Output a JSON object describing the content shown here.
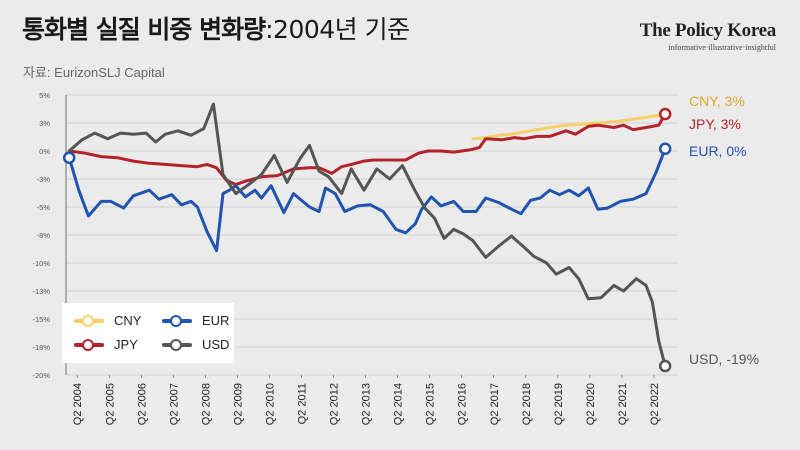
{
  "header": {
    "title": "통화별 실질 비중 변화량",
    "title_suffix": ":2004년 기준",
    "source": "자료: EurizonSLJ Capital",
    "brand_name": "The Policy Korea",
    "brand_tagline": "informative·illustrative·insightful"
  },
  "colors": {
    "CNY": "#f7cf68",
    "JPY": "#b5222a",
    "EUR": "#1f54b0",
    "USD": "#555555",
    "end_CNY": "#d9a82e"
  },
  "chart_data": {
    "type": "line",
    "ylim": [
      -20,
      5
    ],
    "yticks": [
      "5%",
      "3%",
      "0%",
      "-3%",
      "-5%",
      "-8%",
      "-10%",
      "-13%",
      "-15%",
      "-18%",
      "-20%"
    ],
    "x_labels": [
      "Q2 2004",
      "Q2 2005",
      "Q2 2006",
      "Q2 2007",
      "Q2 2008",
      "Q2 2009",
      "Q2 2010",
      "Q2 2011",
      "Q2 2012",
      "Q2 2013",
      "Q2 2014",
      "Q2 2015",
      "Q2 2016",
      "Q2 2017",
      "Q2 2018",
      "Q2 2019",
      "Q2 2020",
      "Q2 2021",
      "Q2 2022"
    ],
    "legend": [
      "CNY",
      "EUR",
      "JPY",
      "USD"
    ],
    "end_labels": {
      "CNY": "CNY, 3%",
      "JPY": "JPY, 3%",
      "EUR": "EUR, 0%",
      "USD": "USD, -19%"
    },
    "series": [
      {
        "name": "CNY",
        "points": [
          [
            2016.6,
            1.1
          ],
          [
            2017.0,
            1.2
          ],
          [
            2017.4,
            1.4
          ],
          [
            2017.8,
            1.5
          ],
          [
            2018.2,
            1.7
          ],
          [
            2018.6,
            1.9
          ],
          [
            2019.0,
            2.1
          ],
          [
            2019.5,
            2.3
          ],
          [
            2020.0,
            2.4
          ],
          [
            2020.5,
            2.5
          ],
          [
            2021.0,
            2.6
          ],
          [
            2021.5,
            2.8
          ],
          [
            2022.0,
            3.0
          ],
          [
            2022.4,
            3.2
          ],
          [
            2022.6,
            3.3
          ]
        ]
      },
      {
        "name": "JPY",
        "points": [
          [
            2004.0,
            0.0
          ],
          [
            2004.5,
            -0.2
          ],
          [
            2005.0,
            -0.5
          ],
          [
            2005.5,
            -0.6
          ],
          [
            2006.0,
            -0.9
          ],
          [
            2006.5,
            -1.1
          ],
          [
            2007.0,
            -1.2
          ],
          [
            2007.5,
            -1.3
          ],
          [
            2008.0,
            -1.4
          ],
          [
            2008.3,
            -1.2
          ],
          [
            2008.6,
            -1.5
          ],
          [
            2008.9,
            -2.6
          ],
          [
            2009.2,
            -3.0
          ],
          [
            2009.5,
            -2.7
          ],
          [
            2010.0,
            -2.3
          ],
          [
            2010.5,
            -2.2
          ],
          [
            2011.0,
            -1.6
          ],
          [
            2011.5,
            -1.5
          ],
          [
            2011.8,
            -1.5
          ],
          [
            2012.2,
            -2.0
          ],
          [
            2012.5,
            -1.4
          ],
          [
            2012.8,
            -1.2
          ],
          [
            2013.2,
            -0.9
          ],
          [
            2013.5,
            -0.8
          ],
          [
            2014.0,
            -0.8
          ],
          [
            2014.5,
            -0.8
          ],
          [
            2014.9,
            -0.2
          ],
          [
            2015.2,
            0.0
          ],
          [
            2015.6,
            0.0
          ],
          [
            2016.0,
            -0.1
          ],
          [
            2016.5,
            0.1
          ],
          [
            2016.8,
            0.3
          ],
          [
            2017.0,
            1.1
          ],
          [
            2017.5,
            1.0
          ],
          [
            2017.9,
            1.2
          ],
          [
            2018.2,
            1.1
          ],
          [
            2018.6,
            1.3
          ],
          [
            2019.0,
            1.3
          ],
          [
            2019.5,
            1.8
          ],
          [
            2019.8,
            1.5
          ],
          [
            2020.2,
            2.2
          ],
          [
            2020.5,
            2.3
          ],
          [
            2021.0,
            2.1
          ],
          [
            2021.3,
            2.3
          ],
          [
            2021.6,
            1.9
          ],
          [
            2022.0,
            2.1
          ],
          [
            2022.4,
            2.3
          ],
          [
            2022.6,
            3.3
          ]
        ]
      },
      {
        "name": "EUR",
        "points": [
          [
            2004.0,
            -0.6
          ],
          [
            2004.3,
            -3.5
          ],
          [
            2004.6,
            -5.8
          ],
          [
            2005.0,
            -4.5
          ],
          [
            2005.3,
            -4.5
          ],
          [
            2005.7,
            -5.1
          ],
          [
            2006.0,
            -4.0
          ],
          [
            2006.5,
            -3.5
          ],
          [
            2006.8,
            -4.3
          ],
          [
            2007.2,
            -3.9
          ],
          [
            2007.5,
            -4.8
          ],
          [
            2007.8,
            -4.5
          ],
          [
            2008.0,
            -5.0
          ],
          [
            2008.3,
            -7.2
          ],
          [
            2008.6,
            -8.9
          ],
          [
            2008.8,
            -3.8
          ],
          [
            2009.0,
            -3.5
          ],
          [
            2009.2,
            -3.1
          ],
          [
            2009.5,
            -4.1
          ],
          [
            2009.8,
            -3.5
          ],
          [
            2010.0,
            -4.2
          ],
          [
            2010.3,
            -3.1
          ],
          [
            2010.7,
            -5.5
          ],
          [
            2011.0,
            -3.8
          ],
          [
            2011.5,
            -5.0
          ],
          [
            2011.8,
            -5.4
          ],
          [
            2012.0,
            -3.3
          ],
          [
            2012.3,
            -3.8
          ],
          [
            2012.6,
            -5.4
          ],
          [
            2013.0,
            -4.9
          ],
          [
            2013.4,
            -4.8
          ],
          [
            2013.8,
            -5.4
          ],
          [
            2014.2,
            -7.0
          ],
          [
            2014.5,
            -7.3
          ],
          [
            2014.8,
            -6.5
          ],
          [
            2015.0,
            -5.2
          ],
          [
            2015.3,
            -4.1
          ],
          [
            2015.6,
            -4.9
          ],
          [
            2016.0,
            -4.5
          ],
          [
            2016.3,
            -5.4
          ],
          [
            2016.7,
            -5.4
          ],
          [
            2017.0,
            -4.2
          ],
          [
            2017.4,
            -4.6
          ],
          [
            2017.8,
            -5.2
          ],
          [
            2018.1,
            -5.6
          ],
          [
            2018.4,
            -4.4
          ],
          [
            2018.7,
            -4.2
          ],
          [
            2019.0,
            -3.5
          ],
          [
            2019.3,
            -3.9
          ],
          [
            2019.6,
            -3.5
          ],
          [
            2019.9,
            -4.0
          ],
          [
            2020.2,
            -3.3
          ],
          [
            2020.5,
            -5.2
          ],
          [
            2020.8,
            -5.1
          ],
          [
            2021.2,
            -4.5
          ],
          [
            2021.6,
            -4.3
          ],
          [
            2022.0,
            -3.8
          ],
          [
            2022.3,
            -2.0
          ],
          [
            2022.6,
            0.2
          ]
        ]
      },
      {
        "name": "USD",
        "points": [
          [
            2004.0,
            0.0
          ],
          [
            2004.4,
            1.0
          ],
          [
            2004.8,
            1.6
          ],
          [
            2005.2,
            1.1
          ],
          [
            2005.6,
            1.6
          ],
          [
            2006.0,
            1.5
          ],
          [
            2006.4,
            1.6
          ],
          [
            2006.7,
            0.8
          ],
          [
            2007.0,
            1.5
          ],
          [
            2007.4,
            1.8
          ],
          [
            2007.8,
            1.4
          ],
          [
            2008.2,
            2.0
          ],
          [
            2008.5,
            4.2
          ],
          [
            2008.8,
            -2.1
          ],
          [
            2009.2,
            -3.8
          ],
          [
            2009.6,
            -3.0
          ],
          [
            2010.0,
            -2.1
          ],
          [
            2010.4,
            -0.4
          ],
          [
            2010.8,
            -2.8
          ],
          [
            2011.2,
            -0.7
          ],
          [
            2011.5,
            0.5
          ],
          [
            2011.8,
            -1.8
          ],
          [
            2012.1,
            -2.3
          ],
          [
            2012.5,
            -3.8
          ],
          [
            2012.8,
            -1.6
          ],
          [
            2013.2,
            -3.5
          ],
          [
            2013.6,
            -1.6
          ],
          [
            2014.0,
            -2.5
          ],
          [
            2014.4,
            -1.3
          ],
          [
            2014.8,
            -3.6
          ],
          [
            2015.1,
            -5.1
          ],
          [
            2015.4,
            -6.0
          ],
          [
            2015.7,
            -7.8
          ],
          [
            2016.0,
            -7.0
          ],
          [
            2016.3,
            -7.4
          ],
          [
            2016.6,
            -8.0
          ],
          [
            2017.0,
            -9.5
          ],
          [
            2017.4,
            -8.5
          ],
          [
            2017.8,
            -7.6
          ],
          [
            2018.2,
            -8.6
          ],
          [
            2018.5,
            -9.4
          ],
          [
            2018.9,
            -10.0
          ],
          [
            2019.2,
            -11.0
          ],
          [
            2019.6,
            -10.4
          ],
          [
            2019.9,
            -11.4
          ],
          [
            2020.2,
            -13.2
          ],
          [
            2020.6,
            -13.1
          ],
          [
            2021.0,
            -12.0
          ],
          [
            2021.3,
            -12.5
          ],
          [
            2021.7,
            -11.4
          ],
          [
            2022.0,
            -12.0
          ],
          [
            2022.2,
            -13.5
          ],
          [
            2022.4,
            -17.0
          ],
          [
            2022.6,
            -19.2
          ]
        ]
      }
    ]
  }
}
